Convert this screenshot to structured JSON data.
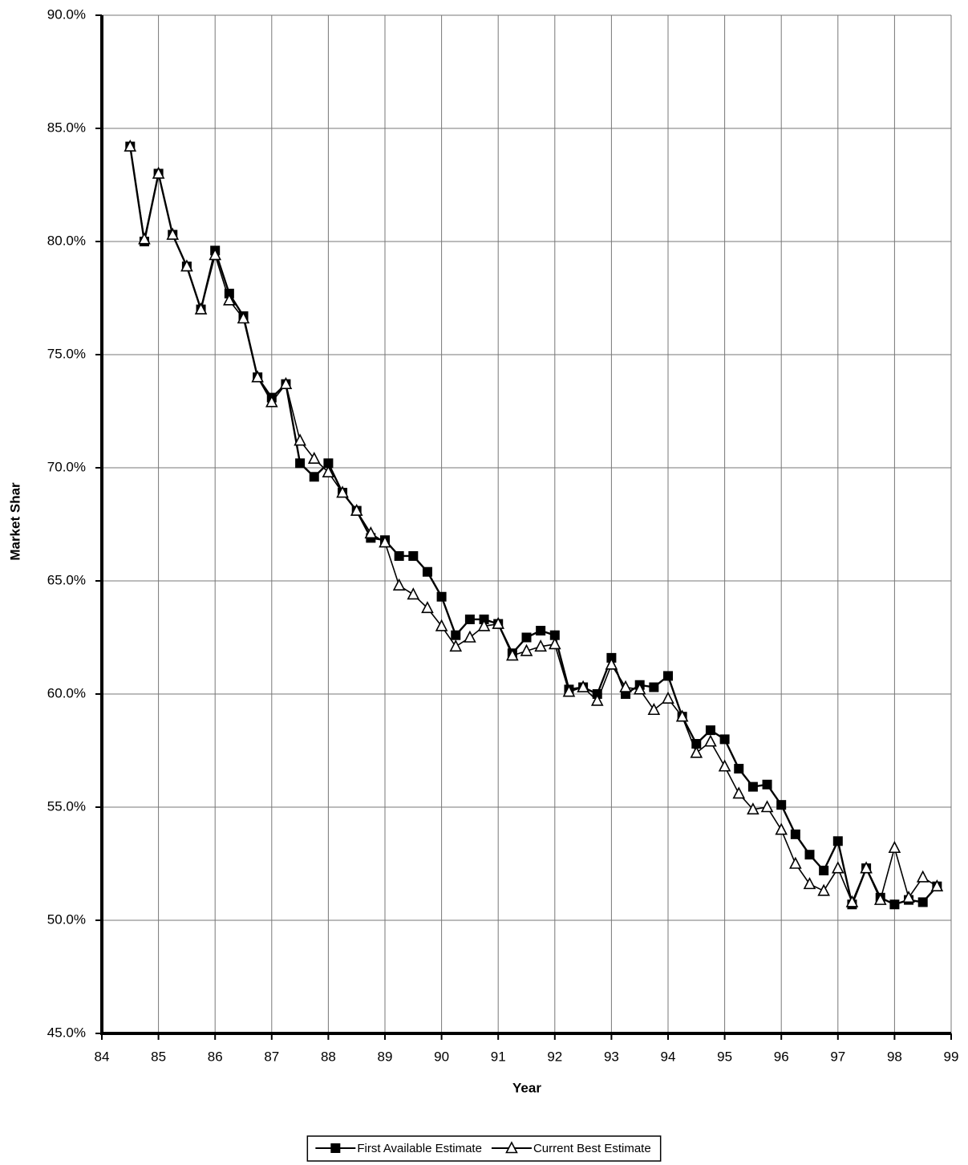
{
  "chart_data": {
    "type": "line",
    "xlabel": "Year",
    "ylabel": "Market Shar",
    "xlim": [
      84,
      99
    ],
    "xticks": [
      84,
      85,
      86,
      87,
      88,
      89,
      90,
      91,
      92,
      93,
      94,
      95,
      96,
      97,
      98,
      99
    ],
    "ylim": [
      45,
      90
    ],
    "yticks": [
      {
        "value": 45,
        "label": "45.0%"
      },
      {
        "value": 50,
        "label": "50.0%"
      },
      {
        "value": 55,
        "label": "55.0%"
      },
      {
        "value": 60,
        "label": "60.0%"
      },
      {
        "value": 65,
        "label": "65.0%"
      },
      {
        "value": 70,
        "label": "70.0%"
      },
      {
        "value": 75,
        "label": "75.0%"
      },
      {
        "value": 80,
        "label": "80.0%"
      },
      {
        "value": 85,
        "label": "85.0%"
      },
      {
        "value": 90,
        "label": "90.0%"
      }
    ],
    "grid": true,
    "legend": "bottom",
    "x": [
      84.5,
      84.75,
      85,
      85.25,
      85.5,
      85.75,
      86,
      86.25,
      86.5,
      86.75,
      87,
      87.25,
      87.5,
      87.75,
      88,
      88.25,
      88.5,
      88.75,
      89,
      89.25,
      89.5,
      89.75,
      90,
      90.25,
      90.5,
      90.75,
      91,
      91.25,
      91.5,
      91.75,
      92,
      92.25,
      92.5,
      92.75,
      93,
      93.25,
      93.5,
      93.75,
      94,
      94.25,
      94.5,
      94.75,
      95,
      95.25,
      95.5,
      95.75,
      96,
      96.25,
      96.5,
      96.75,
      97,
      97.25,
      97.5,
      97.75,
      98,
      98.25,
      98.5,
      98.75
    ],
    "series": [
      {
        "name": "First Available Estimate",
        "color": "#000000",
        "marker": "square",
        "values": [
          84.2,
          80.0,
          83.0,
          80.3,
          78.9,
          77.0,
          79.6,
          77.7,
          76.7,
          74.0,
          73.1,
          73.7,
          70.2,
          69.6,
          70.2,
          68.9,
          68.1,
          66.9,
          66.8,
          66.1,
          66.1,
          65.4,
          64.3,
          62.6,
          63.3,
          63.3,
          63.1,
          61.8,
          62.5,
          62.8,
          62.6,
          60.2,
          60.3,
          60.0,
          61.6,
          60.0,
          60.4,
          60.3,
          60.8,
          59.0,
          57.8,
          58.4,
          58.0,
          56.7,
          55.9,
          56.0,
          55.1,
          53.8,
          52.9,
          52.2,
          53.5,
          50.7,
          52.3,
          51.0,
          50.7,
          50.9,
          50.8,
          51.5
        ]
      },
      {
        "name": "Current Best Estimate",
        "color": "#000000",
        "marker": "triangle",
        "values": [
          84.2,
          80.1,
          83.0,
          80.3,
          78.9,
          77.0,
          79.4,
          77.4,
          76.6,
          74.0,
          72.9,
          73.7,
          71.2,
          70.4,
          69.8,
          68.9,
          68.1,
          67.1,
          66.7,
          64.8,
          64.4,
          63.8,
          63.0,
          62.1,
          62.5,
          63.0,
          63.1,
          61.7,
          61.9,
          62.1,
          62.2,
          60.1,
          60.3,
          59.7,
          61.3,
          60.3,
          60.2,
          59.3,
          59.8,
          59.0,
          57.4,
          57.9,
          56.8,
          55.6,
          54.9,
          55.0,
          54.0,
          52.5,
          51.6,
          51.3,
          52.3,
          50.8,
          52.3,
          50.9,
          53.2,
          51.0,
          51.9,
          51.5
        ]
      }
    ]
  }
}
